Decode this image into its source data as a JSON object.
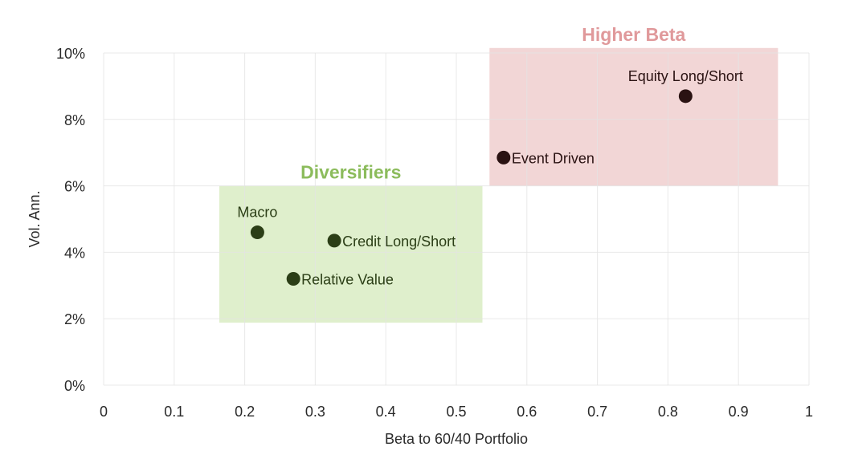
{
  "chart_data": {
    "type": "scatter",
    "title": "",
    "xlabel": "Beta to 60/40 Portfolio",
    "ylabel": "Vol. Ann.",
    "xlim": [
      0,
      1
    ],
    "ylim": [
      0,
      10
    ],
    "x_ticks": [
      "0",
      "0.1",
      "0.2",
      "0.3",
      "0.4",
      "0.5",
      "0.6",
      "0.7",
      "0.8",
      "0.9",
      "1"
    ],
    "y_ticks": [
      "0%",
      "2%",
      "4%",
      "6%",
      "8%",
      "10%"
    ],
    "grid": true,
    "legend": null,
    "points": [
      {
        "label": "Equity Long/Short",
        "x": 0.825,
        "y": 8.7,
        "group": "Higher Beta",
        "label_pos": "above"
      },
      {
        "label": "Event Driven",
        "x": 0.567,
        "y": 6.85,
        "group": "Higher Beta",
        "label_pos": "right"
      },
      {
        "label": "Macro",
        "x": 0.218,
        "y": 4.6,
        "group": "Diversifiers",
        "label_pos": "above"
      },
      {
        "label": "Credit Long/Short",
        "x": 0.327,
        "y": 4.35,
        "group": "Diversifiers",
        "label_pos": "right"
      },
      {
        "label": "Relative Value",
        "x": 0.269,
        "y": 3.2,
        "group": "Diversifiers",
        "label_pos": "right"
      }
    ],
    "annotations": [
      {
        "text": "Higher Beta",
        "x0": 0.547,
        "x1": 0.956,
        "y0": 6.0,
        "y1": 10.15,
        "fill": "#f2d6d6",
        "text_color": "#e0999b",
        "point_color": "#2a1212",
        "label_color": "#2a1212"
      },
      {
        "text": "Diversifiers",
        "x0": 0.164,
        "x1": 0.537,
        "y0": 1.88,
        "y1": 6.0,
        "fill": "#dfefcc",
        "text_color": "#8cbc5c",
        "point_color": "#2b3e16",
        "label_color": "#2b3e16"
      }
    ]
  }
}
